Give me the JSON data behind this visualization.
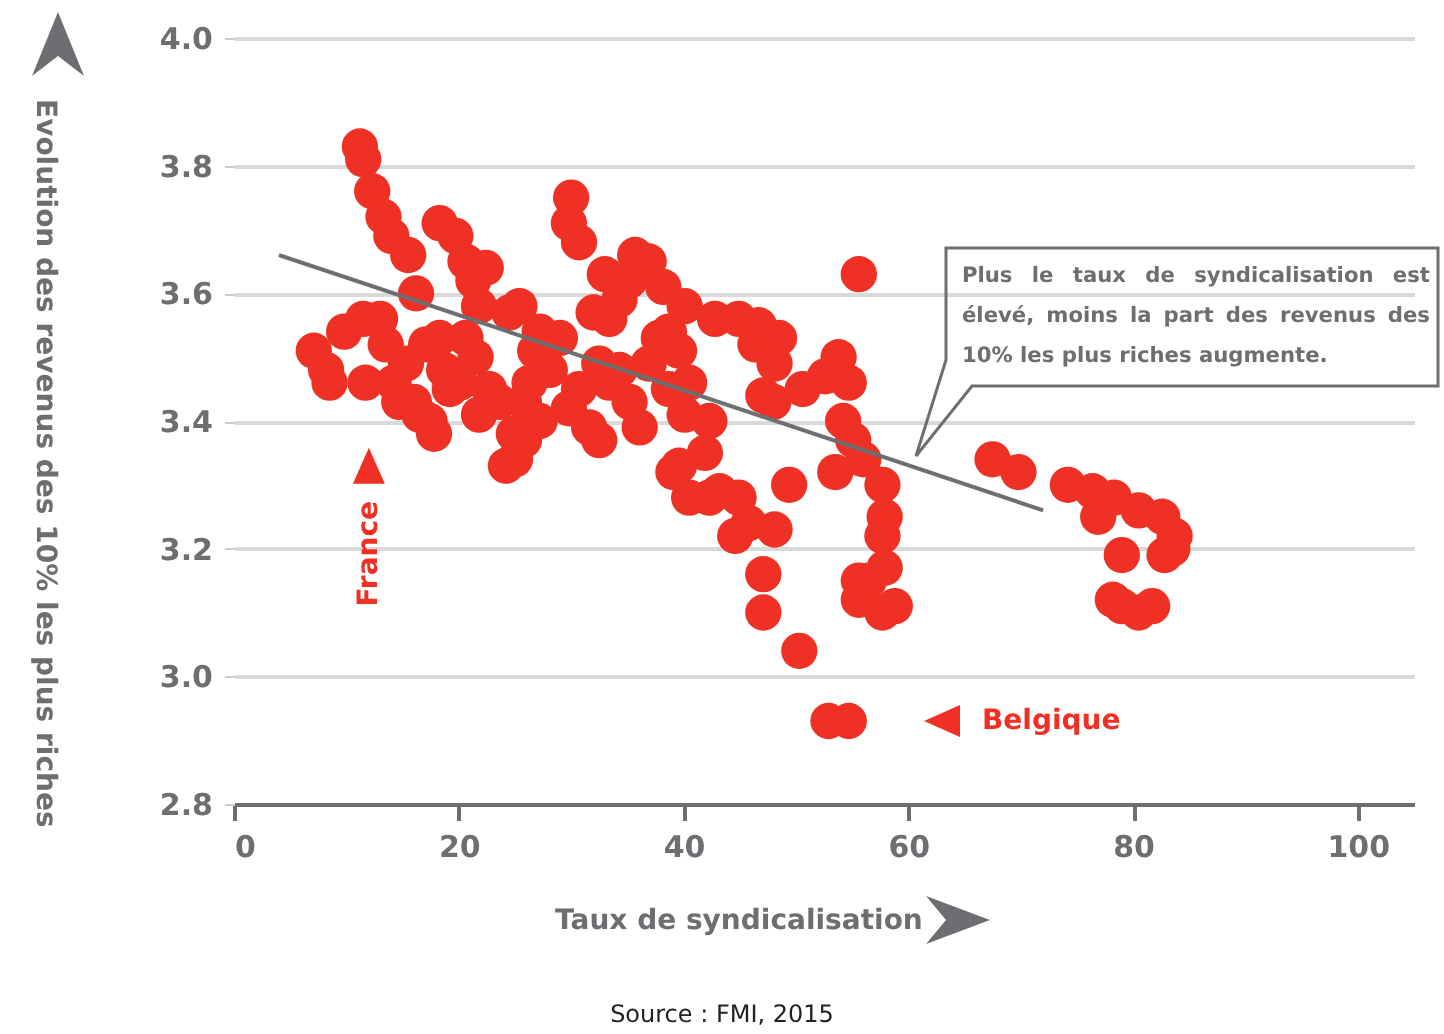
{
  "chart_data": {
    "type": "scatter",
    "xlabel": "Taux de syndicalisation",
    "ylabel": "Evolution des revenus des 10% les plus riches",
    "xlim": [
      0,
      105
    ],
    "xticks": [
      0,
      20,
      40,
      60,
      80,
      100
    ],
    "ylim": [
      2.8,
      4.0
    ],
    "yticks": [
      {
        "value": 2.8,
        "label": "2.8"
      },
      {
        "value": 3,
        "label": "3.0"
      },
      {
        "value": 3.2,
        "label": "3.2"
      },
      {
        "value": 3.4,
        "label": "3.4"
      },
      {
        "value": 3.6,
        "label": "3.6"
      },
      {
        "value": 3.8,
        "label": "3.8"
      },
      {
        "value": 4,
        "label": "4.0"
      }
    ],
    "grid": "y",
    "series": [
      {
        "type": "scatter",
        "marker": "circle",
        "color": "#ee3124",
        "x": [
          11.2,
          11.5,
          12.3,
          13.3,
          14,
          15.5,
          16.2,
          18.3,
          19.7,
          20.6,
          21.3,
          21.8,
          8.2,
          9.8,
          11.5,
          13,
          13.5,
          14.2,
          11.7,
          14.7,
          17.8,
          16.5,
          15.3,
          18.3,
          20.1,
          21.8,
          7.1,
          8.5,
          16,
          17.4,
          17.1,
          18.7,
          19.2,
          20.6,
          21.5,
          22.7,
          23.6,
          25,
          25.8,
          26.3,
          26.8,
          27.2,
          24.5,
          25.8,
          28.1,
          29,
          27.2,
          29.8,
          30.7,
          31.6,
          32.5,
          33.4,
          32.5,
          34.3,
          35.2,
          36.1,
          36.9,
          37.8,
          38.7,
          39.6,
          40.5,
          42.3,
          38.7,
          33.4,
          34.3,
          35.2,
          36.9,
          30,
          29.8,
          30.7,
          35.7,
          33,
          32,
          40.1,
          42.8,
          44.9,
          46.4,
          47.1,
          41.9,
          39.1,
          43.2,
          44.9,
          24.2,
          24.9,
          25.4,
          22.4,
          55.6,
          46.7,
          48.5,
          48.1,
          48,
          50.6,
          52.6,
          53.8,
          54.7,
          54.2,
          55.1,
          53.5,
          56,
          57.7,
          57.9,
          57.7,
          57.9,
          55.6,
          57.7,
          58.8,
          49.4,
          48.1,
          45.8,
          44.6,
          42.3,
          40.5,
          39.6,
          40.1,
          38.2,
          47.1,
          47.1,
          50.3,
          52.9,
          54.7,
          55.6,
          56.5,
          67.5,
          69.8,
          74.2,
          76.4,
          76.9,
          78.3,
          80.5,
          82.6,
          83.7,
          82.8,
          79,
          78.2,
          81.7,
          80.5,
          79,
          83.5
        ],
        "values": [
          3.83,
          3.81,
          3.76,
          3.72,
          3.69,
          3.66,
          3.6,
          3.71,
          3.69,
          3.65,
          3.62,
          3.58,
          3.48,
          3.54,
          3.56,
          3.56,
          3.52,
          3.46,
          3.46,
          3.43,
          3.38,
          3.41,
          3.49,
          3.53,
          3.46,
          3.41,
          3.51,
          3.46,
          3.43,
          3.4,
          3.52,
          3.48,
          3.45,
          3.53,
          3.5,
          3.45,
          3.43,
          3.34,
          3.37,
          3.46,
          3.51,
          3.54,
          3.57,
          3.43,
          3.48,
          3.53,
          3.4,
          3.42,
          3.45,
          3.39,
          3.37,
          3.46,
          3.49,
          3.48,
          3.43,
          3.39,
          3.49,
          3.53,
          3.54,
          3.51,
          3.46,
          3.4,
          3.45,
          3.56,
          3.59,
          3.62,
          3.65,
          3.75,
          3.71,
          3.68,
          3.66,
          3.63,
          3.57,
          3.58,
          3.56,
          3.56,
          3.52,
          3.44,
          3.35,
          3.32,
          3.29,
          3.28,
          3.33,
          3.38,
          3.58,
          3.64,
          3.63,
          3.55,
          3.53,
          3.49,
          3.43,
          3.45,
          3.47,
          3.5,
          3.46,
          3.4,
          3.37,
          3.32,
          3.34,
          3.3,
          3.25,
          3.22,
          3.17,
          3.15,
          3.1,
          3.11,
          3.3,
          3.23,
          3.24,
          3.22,
          3.28,
          3.28,
          3.33,
          3.41,
          3.61,
          3.16,
          3.1,
          3.04,
          2.93,
          2.93,
          3.12,
          3.15,
          3.34,
          3.32,
          3.3,
          3.29,
          3.25,
          3.28,
          3.26,
          3.25,
          3.22,
          3.19,
          3.19,
          3.12,
          3.11,
          3.1,
          3.11,
          3.2
        ]
      },
      {
        "type": "line",
        "marker": "none",
        "color": "#6d6e71",
        "x": [
          4,
          72
        ],
        "values": [
          3.66,
          3.26
        ]
      }
    ],
    "annotations": [
      {
        "text": "France",
        "x": 12,
        "y": 3.33
      },
      {
        "text": "Belgique",
        "x": 63,
        "y": 2.93
      },
      "Plus le taux de syndicalisation est élevé, moins la part des revenus des 10% les plus riches augmente.",
      "Source : FMI, 2015"
    ]
  }
}
